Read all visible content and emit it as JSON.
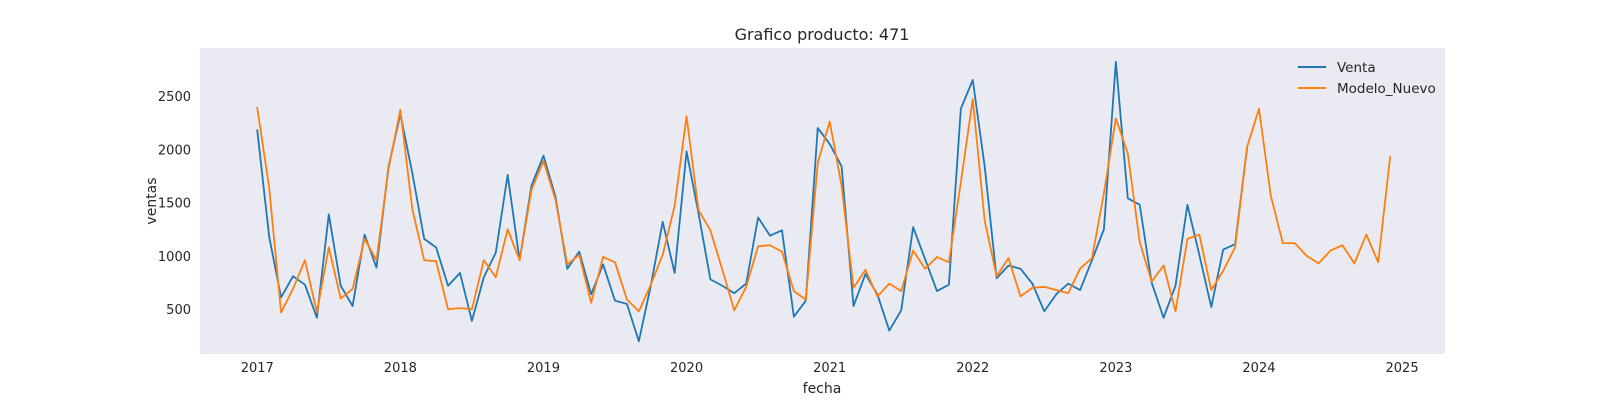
{
  "chart_data": {
    "type": "line",
    "title": "Grafico producto: 471",
    "xlabel": "fecha",
    "ylabel": "ventas",
    "x_start": "2017-01",
    "x_step": "month",
    "xlim": [
      2016.6,
      2025.3
    ],
    "ylim": [
      80,
      2950
    ],
    "x_ticks": [
      2017,
      2018,
      2019,
      2020,
      2021,
      2022,
      2023,
      2024,
      2025
    ],
    "y_ticks": [
      500,
      1000,
      1500,
      2000,
      2500
    ],
    "grid": false,
    "background": "#eaeaf2",
    "legend_position": "top-right",
    "series": [
      {
        "name": "Venta",
        "color": "#1f77b4",
        "values": [
          2180,
          1180,
          610,
          810,
          730,
          420,
          1390,
          720,
          530,
          1200,
          890,
          1830,
          2330,
          1780,
          1160,
          1080,
          720,
          840,
          390,
          800,
          1030,
          1760,
          960,
          1660,
          1940,
          1560,
          880,
          1040,
          640,
          920,
          580,
          550,
          200,
          720,
          1320,
          840,
          1980,
          1400,
          780,
          720,
          650,
          740,
          1360,
          1190,
          1240,
          430,
          580,
          2200,
          2050,
          1840,
          530,
          830,
          640,
          300,
          490,
          1270,
          970,
          670,
          730,
          2380,
          2650,
          1840,
          790,
          910,
          880,
          740,
          480,
          640,
          740,
          680,
          960,
          1250,
          2820,
          1540,
          1480,
          750,
          420,
          720,
          1480,
          1010,
          520,
          1060,
          1110,
          2010
        ]
      },
      {
        "name": "Modelo_Nuevo",
        "color": "#ff7f0e",
        "values": [
          2390,
          1640,
          470,
          690,
          960,
          470,
          1080,
          600,
          690,
          1160,
          960,
          1810,
          2370,
          1440,
          960,
          950,
          500,
          510,
          500,
          960,
          800,
          1250,
          960,
          1620,
          1890,
          1530,
          920,
          1010,
          560,
          990,
          940,
          590,
          480,
          730,
          1010,
          1470,
          2310,
          1430,
          1240,
          870,
          490,
          710,
          1090,
          1100,
          1040,
          670,
          590,
          1870,
          2260,
          1660,
          700,
          870,
          620,
          740,
          670,
          1050,
          880,
          990,
          940,
          1690,
          2470,
          1330,
          810,
          980,
          620,
          700,
          710,
          680,
          650,
          880,
          980,
          1590,
          2290,
          1960,
          1130,
          760,
          910,
          480,
          1160,
          1200,
          680,
          860,
          1080,
          2020,
          2380,
          1560,
          1120,
          1120,
          1000,
          930,
          1050,
          1100,
          930,
          1200,
          940,
          1930
        ]
      }
    ]
  }
}
